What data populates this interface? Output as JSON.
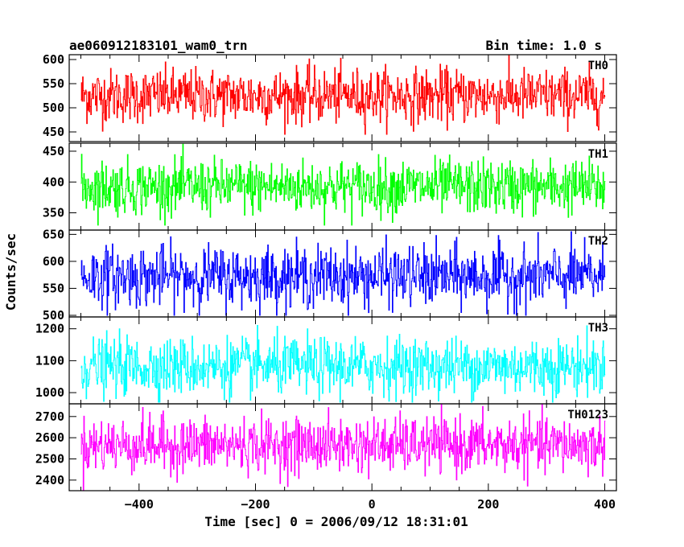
{
  "header": {
    "left": "ae060912183101_wam0_trn",
    "right": "Bin time: 1.0 s"
  },
  "chart_data": [
    {
      "type": "line",
      "panel_label": "TH0",
      "color": "#ff0000",
      "ylim": [
        430,
        610
      ],
      "yticks": [
        450,
        500,
        550,
        600
      ],
      "mean": 525,
      "sd": 28,
      "min": 445,
      "max": 610,
      "xlim": [
        -520,
        420
      ],
      "xticks": [
        -400,
        -200,
        0,
        200,
        400
      ],
      "x_start": -500,
      "x_end": 400
    },
    {
      "type": "line",
      "panel_label": "TH1",
      "color": "#00ff00",
      "ylim": [
        322,
        463
      ],
      "yticks": [
        350,
        400,
        450
      ],
      "mean": 392,
      "sd": 22,
      "min": 330,
      "max": 463,
      "xlim": [
        -520,
        420
      ],
      "xticks": [
        -400,
        -200,
        0,
        200,
        400
      ],
      "x_start": -500,
      "x_end": 400
    },
    {
      "type": "line",
      "panel_label": "TH2",
      "color": "#0000ff",
      "ylim": [
        497,
        658
      ],
      "yticks": [
        500,
        550,
        600,
        650
      ],
      "mean": 572,
      "sd": 28,
      "min": 500,
      "max": 658,
      "xlim": [
        -520,
        420
      ],
      "xticks": [
        -400,
        -200,
        0,
        200,
        400
      ],
      "x_start": -500,
      "x_end": 400
    },
    {
      "type": "line",
      "panel_label": "TH3",
      "color": "#00ffff",
      "ylim": [
        965,
        1237
      ],
      "yticks": [
        1000,
        1100,
        1200
      ],
      "mean": 1082,
      "sd": 45,
      "min": 970,
      "max": 1237,
      "xlim": [
        -520,
        420
      ],
      "xticks": [
        -400,
        -200,
        0,
        200,
        400
      ],
      "x_start": -500,
      "x_end": 400
    },
    {
      "type": "line",
      "panel_label": "TH0123",
      "color": "#ff00ff",
      "ylim": [
        2350,
        2760
      ],
      "yticks": [
        2400,
        2500,
        2600,
        2700
      ],
      "mean": 2565,
      "sd": 65,
      "min": 2350,
      "max": 2760,
      "xlim": [
        -520,
        420
      ],
      "xticks": [
        -400,
        -200,
        0,
        200,
        400
      ],
      "x_start": -500,
      "x_end": 400
    }
  ],
  "xlabel": "Time [sec] 0 = 2006/09/12 18:31:01",
  "ylabel": "Counts/sec"
}
